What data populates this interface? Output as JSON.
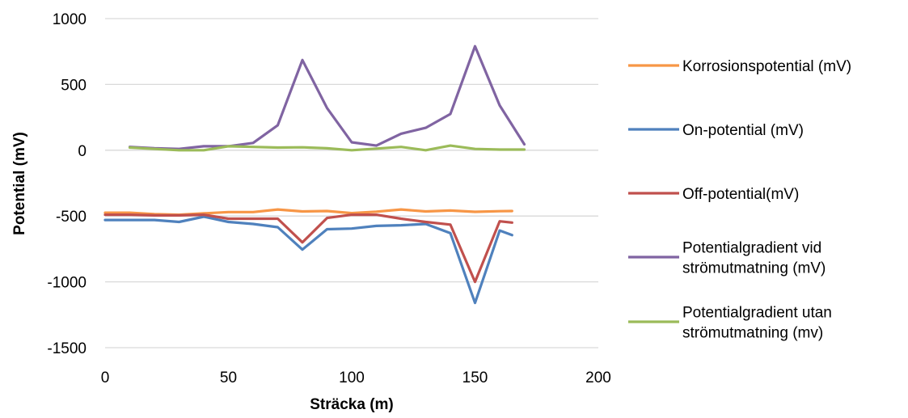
{
  "chart_data": {
    "type": "line",
    "title": "",
    "xlabel": "Sträcka (m)",
    "ylabel": "Potential (mV)",
    "xlim": [
      0,
      200
    ],
    "ylim": [
      -1500,
      1000
    ],
    "x_ticks": [
      "0",
      "50",
      "100",
      "150",
      "200"
    ],
    "y_ticks": [
      "1000",
      "500",
      "0",
      "-500",
      "-1000",
      "-1500"
    ],
    "grid": "horizontal",
    "legend_position": "right",
    "series": [
      {
        "name": "Korrosionspotential (mV)",
        "color": "#F79646",
        "x": [
          0,
          10,
          20,
          30,
          40,
          50,
          60,
          70,
          80,
          90,
          100,
          110,
          120,
          130,
          140,
          150,
          160,
          165
        ],
        "y": [
          -475,
          -475,
          -485,
          -490,
          -480,
          -470,
          -470,
          -450,
          -465,
          -462,
          -478,
          -467,
          -450,
          -465,
          -458,
          -468,
          -463,
          -462
        ]
      },
      {
        "name": "On-potential (mV)",
        "color": "#4F81BD",
        "x": [
          0,
          10,
          20,
          30,
          40,
          50,
          60,
          70,
          80,
          90,
          100,
          110,
          120,
          130,
          140,
          150,
          160,
          165
        ],
        "y": [
          -530,
          -530,
          -530,
          -545,
          -505,
          -545,
          -560,
          -585,
          -755,
          -600,
          -595,
          -575,
          -570,
          -560,
          -630,
          -1160,
          -610,
          -645
        ]
      },
      {
        "name": "Off-potential(mV)",
        "color": "#C0504D",
        "x": [
          0,
          10,
          20,
          30,
          40,
          50,
          60,
          70,
          80,
          90,
          100,
          110,
          120,
          130,
          140,
          150,
          160,
          165
        ],
        "y": [
          -490,
          -490,
          -495,
          -495,
          -490,
          -520,
          -520,
          -520,
          -700,
          -515,
          -490,
          -490,
          -520,
          -545,
          -565,
          -1000,
          -540,
          -550
        ]
      },
      {
        "name": "Potentialgradient vid strömutmatning (mV)",
        "color": "#8064A2",
        "x": [
          10,
          20,
          30,
          40,
          50,
          60,
          70,
          80,
          90,
          100,
          110,
          120,
          130,
          140,
          150,
          160,
          170
        ],
        "y": [
          25,
          15,
          10,
          30,
          30,
          55,
          190,
          685,
          320,
          60,
          35,
          125,
          170,
          275,
          790,
          340,
          45
        ]
      },
      {
        "name": "Potentialgradient utan strömutmatning (mv)",
        "color": "#9BBB59",
        "x": [
          10,
          20,
          30,
          40,
          50,
          60,
          70,
          80,
          90,
          100,
          110,
          120,
          130,
          140,
          150,
          160,
          170
        ],
        "y": [
          20,
          10,
          0,
          0,
          30,
          25,
          20,
          22,
          15,
          0,
          12,
          25,
          0,
          35,
          10,
          5,
          5
        ]
      }
    ],
    "legend_labels": [
      [
        "Korrosionspotential (mV)"
      ],
      [
        "On-potential (mV)"
      ],
      [
        "Off-potential(mV)"
      ],
      [
        "Potentialgradient vid",
        "strömutmatning (mV)"
      ],
      [
        "Potentialgradient utan",
        "strömutmatning (mv)"
      ]
    ]
  }
}
